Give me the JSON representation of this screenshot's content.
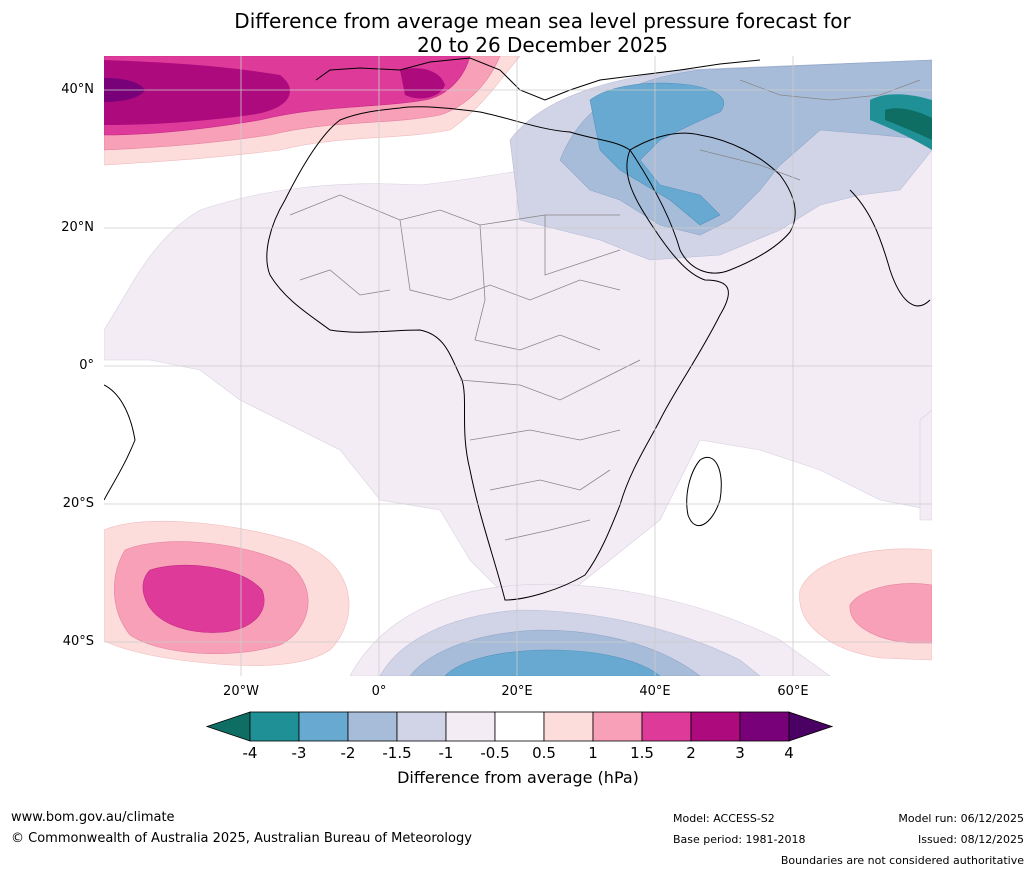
{
  "title": {
    "line1": "Difference from average mean sea level pressure forecast for",
    "line2": "20 to 26 December 2025"
  },
  "map": {
    "region": "Africa and surrounds",
    "lat_labels": [
      "40°N",
      "20°N",
      "0°",
      "20°S",
      "40°S"
    ],
    "lon_labels": [
      "20°W",
      "0°",
      "20°E",
      "40°E",
      "60°E"
    ]
  },
  "colorbar": {
    "ticks": [
      "-4",
      "-3",
      "-2",
      "-1.5",
      "-1",
      "-0.5",
      "0.5",
      "1",
      "1.5",
      "2",
      "3",
      "4"
    ],
    "colors": [
      "#0e6e63",
      "#1f9196",
      "#67a9d0",
      "#a7bcd9",
      "#d1d3e6",
      "#f3ecf5",
      "#ffffff",
      "#fddcdc",
      "#f7a0b8",
      "#dd3a9a",
      "#ad0a7e",
      "#780179",
      "#4b0064"
    ],
    "label": "Difference from average (hPa)"
  },
  "footer": {
    "website": "www.bom.gov.au/climate",
    "copyright": "© Commonwealth of Australia 2025, Australian Bureau of Meteorology",
    "model": "Model: ACCESS-S2",
    "base_period": "Base period: 1981-2018",
    "model_run": "Model run: 06/12/2025",
    "issued": "Issued: 08/12/2025",
    "disclaimer": "Boundaries are not considered authoritative"
  }
}
